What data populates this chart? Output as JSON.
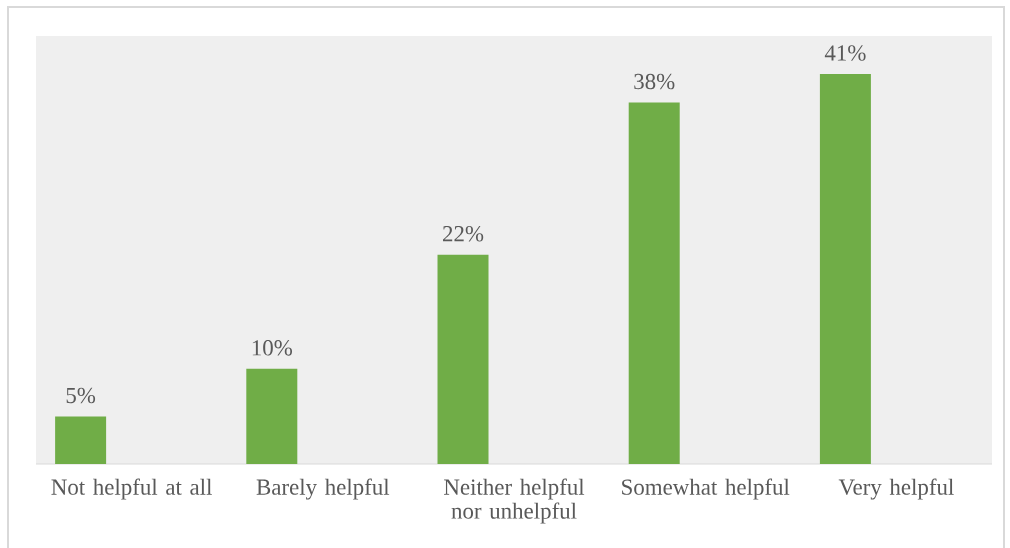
{
  "chart_data": {
    "type": "bar",
    "categories": [
      "Not helpful at all",
      "Barely helpful",
      "Neither helpful nor unhelpful",
      "Somewhat helpful",
      "Very helpful"
    ],
    "values": [
      5,
      10,
      22,
      38,
      41
    ],
    "value_labels": [
      "5%",
      "10%",
      "22%",
      "38%",
      "41%"
    ],
    "color": "#70ad47"
  }
}
